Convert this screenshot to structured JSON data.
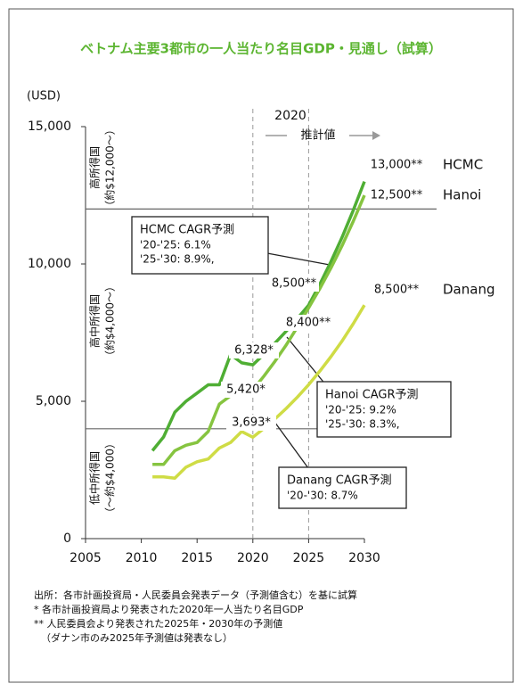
{
  "chart_data": {
    "type": "line",
    "title": "ベトナム主要3都市の一人当たり名目GDP・見通し（試算）",
    "y_label": "(USD)",
    "x": [
      2011,
      2012,
      2013,
      2014,
      2015,
      2016,
      2017,
      2018,
      2019,
      2020,
      2021,
      2022,
      2023,
      2024,
      2025,
      2026,
      2027,
      2028,
      2029,
      2030
    ],
    "xlim": [
      2005,
      2030
    ],
    "xticks": [
      2005,
      2010,
      2015,
      2020,
      2025,
      2030
    ],
    "ylim": [
      0,
      15000
    ],
    "yticks": [
      0,
      {
        "value": 5000,
        "label": "5,000"
      },
      {
        "value": 10000,
        "label": "10,000"
      },
      {
        "value": 15000,
        "label": "15,000"
      }
    ],
    "series": [
      {
        "name": "HCMC",
        "color": "#4fae34",
        "values": [
          3200,
          3700,
          4600,
          5000,
          5300,
          5600,
          5600,
          6700,
          6400,
          6328,
          6714,
          7124,
          7558,
          8019,
          8500,
          9256,
          10080,
          10977,
          11954,
          13000
        ],
        "value_labels": [
          null,
          null,
          null,
          null,
          null,
          null,
          null,
          null,
          null,
          "6,328*",
          null,
          null,
          null,
          null,
          "8,500**",
          null,
          null,
          null,
          null,
          "13,000**"
        ]
      },
      {
        "name": "Hanoi",
        "color": "#86c440",
        "values": [
          2700,
          2700,
          3200,
          3400,
          3500,
          3900,
          4900,
          5200,
          5300,
          5420,
          5919,
          6463,
          7058,
          7707,
          8400,
          9097,
          9852,
          10670,
          11556,
          12500
        ],
        "value_labels": [
          null,
          null,
          null,
          null,
          null,
          null,
          null,
          null,
          null,
          "5,420*",
          null,
          null,
          null,
          null,
          "8,400**",
          null,
          null,
          null,
          null,
          "12,500**"
        ]
      },
      {
        "name": "Danang",
        "color": "#cfdc45",
        "values": [
          2250,
          2250,
          2200,
          2600,
          2800,
          2900,
          3300,
          3500,
          3900,
          3693,
          4014,
          4364,
          4743,
          5156,
          5605,
          6093,
          6623,
          7199,
          7826,
          8500
        ],
        "value_labels": [
          null,
          null,
          null,
          null,
          null,
          null,
          null,
          null,
          null,
          "3,693*",
          null,
          null,
          null,
          null,
          null,
          null,
          null,
          null,
          null,
          "8,500**"
        ]
      }
    ],
    "hlines": [
      12000,
      4000
    ],
    "vlines": [
      2020,
      2025
    ],
    "zones": [
      [
        "高所得国",
        "（約$12,000～）"
      ],
      [
        "高中所得国",
        "（約$4,000～）"
      ],
      [
        "低中所得国",
        "（～約$4,000）"
      ]
    ],
    "projection_year": "2020",
    "projection_label": "推計値",
    "callouts": [
      {
        "title": "HCMC CAGR予測",
        "lines": [
          "'20-'25: 6.1%",
          "'25-'30: 8.9%,"
        ]
      },
      {
        "title": "Hanoi CAGR予測",
        "lines": [
          "'20-'25: 9.2%",
          "'25-'30: 8.3%,"
        ]
      },
      {
        "title": "Danang CAGR予測",
        "lines": [
          "'20-'30: 8.7%"
        ]
      }
    ],
    "footnotes": [
      "出所：各市計画投資局・人民委員会発表データ（予測値含む）を基に試算",
      "* 各市計画投資局より発表された2020年一人当たり名目GDP",
      "** 人民委員会より発表された2025年・2030年の予測値",
      "（ダナン市のみ2025年予測値は発表なし）"
    ]
  }
}
